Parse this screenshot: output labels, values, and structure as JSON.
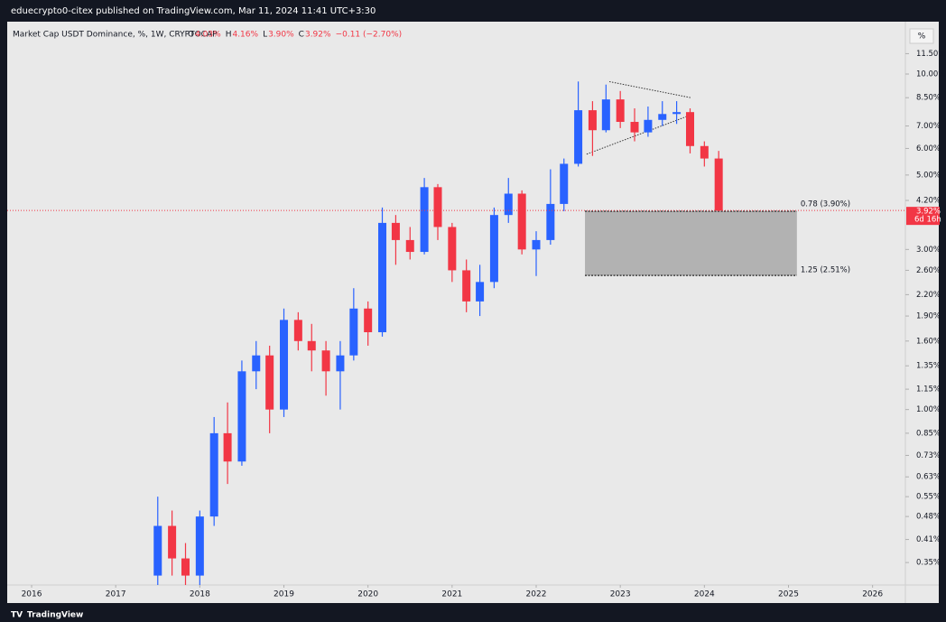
{
  "header": {
    "publisher": "eduecrypto0-citex published on TradingView.com, Mar 11, 2024 11:41 UTC+3:30"
  },
  "footer": {
    "brand": "TradingView"
  },
  "chart_data": {
    "type": "candlestick",
    "legend": "Market Cap USDT Dominance, %, 1W, CRYPTOCAP",
    "ohlc": [
      {
        "key": "O",
        "value": "4.03%"
      },
      {
        "key": "H",
        "value": "4.16%"
      },
      {
        "key": "L",
        "value": "3.90%"
      },
      {
        "key": "C",
        "value": "3.92%"
      }
    ],
    "change": "−0.11 (−2.70%)",
    "y_unit": "%",
    "log_scale": true,
    "up_color": "#2962ff",
    "down_color": "#f23645",
    "x": [
      2017.5,
      2017.67,
      2017.83,
      2018.0,
      2018.17,
      2018.33,
      2018.5,
      2018.67,
      2018.83,
      2019.0,
      2019.17,
      2019.33,
      2019.5,
      2019.67,
      2019.83,
      2020.0,
      2020.17,
      2020.33,
      2020.5,
      2020.67,
      2020.83,
      2021.0,
      2021.17,
      2021.33,
      2021.5,
      2021.67,
      2021.83,
      2022.0,
      2022.17,
      2022.33,
      2022.5,
      2022.67,
      2022.83,
      2023.0,
      2023.17,
      2023.33,
      2023.5,
      2023.67,
      2023.83,
      2024.0,
      2024.17
    ],
    "open": [
      0.32,
      0.45,
      0.36,
      0.32,
      0.48,
      0.85,
      0.7,
      1.3,
      1.45,
      1.0,
      1.85,
      1.6,
      1.5,
      1.3,
      1.45,
      2.0,
      1.7,
      3.6,
      3.2,
      2.95,
      4.6,
      3.5,
      2.6,
      2.1,
      2.4,
      3.8,
      4.4,
      3.0,
      3.2,
      4.1,
      5.4,
      7.8,
      6.8,
      8.4,
      7.2,
      6.7,
      7.3,
      7.6,
      7.7,
      6.1,
      5.6
    ],
    "high": [
      0.55,
      0.5,
      0.4,
      0.5,
      0.95,
      1.05,
      1.4,
      1.6,
      1.55,
      2.0,
      1.95,
      1.8,
      1.6,
      1.6,
      2.3,
      2.1,
      4.0,
      3.8,
      3.5,
      4.9,
      4.7,
      3.6,
      2.8,
      2.7,
      4.0,
      4.9,
      4.5,
      3.4,
      5.2,
      5.6,
      9.5,
      8.3,
      9.3,
      8.9,
      7.9,
      8.0,
      8.3,
      8.3,
      7.9,
      6.3,
      5.9
    ],
    "low": [
      0.3,
      0.32,
      0.3,
      0.3,
      0.45,
      0.6,
      0.68,
      1.15,
      0.85,
      0.95,
      1.5,
      1.3,
      1.1,
      1.0,
      1.4,
      1.55,
      1.65,
      2.7,
      2.8,
      2.9,
      3.2,
      2.4,
      1.95,
      1.9,
      2.3,
      3.6,
      2.9,
      2.5,
      3.1,
      3.9,
      5.3,
      5.7,
      6.7,
      6.9,
      6.3,
      6.5,
      7.0,
      7.1,
      5.8,
      5.3,
      3.9
    ],
    "close": [
      0.45,
      0.36,
      0.32,
      0.48,
      0.85,
      0.7,
      1.3,
      1.45,
      1.0,
      1.85,
      1.6,
      1.5,
      1.3,
      1.45,
      2.0,
      1.7,
      3.6,
      3.2,
      2.95,
      4.6,
      3.5,
      2.6,
      2.1,
      2.4,
      3.8,
      4.4,
      3.0,
      3.2,
      4.1,
      5.4,
      7.8,
      6.8,
      8.4,
      7.2,
      6.7,
      7.3,
      7.6,
      7.7,
      6.1,
      5.6,
      3.92
    ],
    "xlim": [
      2015.71,
      2026.39
    ],
    "xticks": [
      2016,
      2017,
      2018,
      2019,
      2020,
      2021,
      2022,
      2023,
      2024,
      2025,
      2026
    ],
    "ylim": [
      0.3,
      13.8
    ],
    "yticks": [
      {
        "value": 0.35,
        "label": "0.35%"
      },
      {
        "value": 0.41,
        "label": "0.41%"
      },
      {
        "value": 0.48,
        "label": "0.48%"
      },
      {
        "value": 0.55,
        "label": "0.55%"
      },
      {
        "value": 0.63,
        "label": "0.63%"
      },
      {
        "value": 0.73,
        "label": "0.73%"
      },
      {
        "value": 0.85,
        "label": "0.85%"
      },
      {
        "value": 1.0,
        "label": "1.00%"
      },
      {
        "value": 1.15,
        "label": "1.15%"
      },
      {
        "value": 1.35,
        "label": "1.35%"
      },
      {
        "value": 1.6,
        "label": "1.60%"
      },
      {
        "value": 1.9,
        "label": "1.90%"
      },
      {
        "value": 2.2,
        "label": "2.20%"
      },
      {
        "value": 2.6,
        "label": "2.60%"
      },
      {
        "value": 3.0,
        "label": "3.00%"
      },
      {
        "value": 4.2,
        "label": "4.20%"
      },
      {
        "value": 5.0,
        "label": "5.00%"
      },
      {
        "value": 6.0,
        "label": "6.00%"
      },
      {
        "value": 7.0,
        "label": "7.00%"
      },
      {
        "value": 8.5,
        "label": "8.50%"
      },
      {
        "value": 10.0,
        "label": "10.00%"
      },
      {
        "value": 11.5,
        "label": "11.50%"
      }
    ],
    "last_price": {
      "value": 3.92,
      "label": "3.92%",
      "countdown": "6d 16h",
      "color": "#f23645"
    },
    "zone": {
      "x_start": 2022.58,
      "x_end": 2025.1,
      "top": 3.9,
      "bottom": 2.51,
      "top_label": "0.78 (3.90%)",
      "bottom_label": "1.25 (2.51%)",
      "color": "#b2b2b2"
    },
    "trendlines": [
      {
        "x": [
          2022.87,
          2023.84
        ],
        "y": [
          9.49,
          8.5
        ]
      },
      {
        "x": [
          2022.6,
          2023.8
        ],
        "y": [
          5.77,
          7.49
        ]
      }
    ]
  }
}
